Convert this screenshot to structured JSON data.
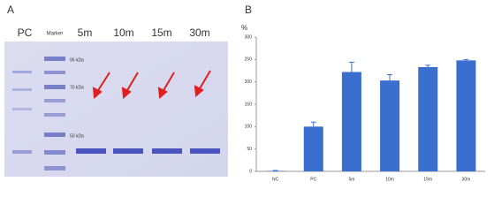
{
  "gel": {
    "panel": "A",
    "lanes": [
      "PC",
      "Marker",
      "5m",
      "10m",
      "15m",
      "30m"
    ],
    "markers": [
      "95 kDa",
      "70 kDa",
      "50 kDa"
    ]
  },
  "chart_data": {
    "type": "bar",
    "panel": "B",
    "ylabel": "%",
    "categories": [
      "NC",
      "PC",
      "5m",
      "10m",
      "15m",
      "30m"
    ],
    "values": [
      1,
      100,
      222,
      203,
      233,
      248
    ],
    "errors": [
      1,
      10,
      22,
      13,
      4,
      2
    ],
    "color": "#3a6fd0",
    "ylim": [
      0,
      300
    ],
    "yticks": [
      0,
      50,
      100,
      150,
      200,
      250,
      300
    ],
    "grid": false
  }
}
